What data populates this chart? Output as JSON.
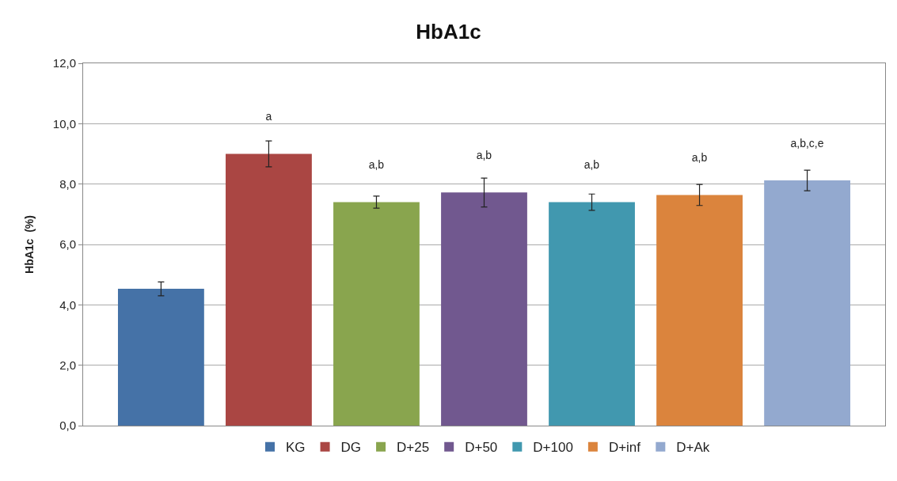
{
  "chart_data": {
    "type": "bar",
    "title": "HbA1c",
    "ylabel": "HbA1c  (%)",
    "categories": [
      null
    ],
    "series": [
      {
        "name": "KG",
        "color": "#4572a7",
        "values": [
          4.53
        ],
        "errors": [
          0.23
        ],
        "value_labels": [
          null
        ]
      },
      {
        "name": "DG",
        "color": "#aa4643",
        "values": [
          9.0
        ],
        "errors": [
          0.43
        ],
        "value_labels": [
          "a"
        ]
      },
      {
        "name": "D+25",
        "color": "#89a54e",
        "values": [
          7.4
        ],
        "errors": [
          0.2
        ],
        "value_labels": [
          "a,b"
        ]
      },
      {
        "name": "D+50",
        "color": "#71588f",
        "values": [
          7.72
        ],
        "errors": [
          0.48
        ],
        "value_labels": [
          "a,b"
        ]
      },
      {
        "name": "D+100",
        "color": "#4198af",
        "values": [
          7.4
        ],
        "errors": [
          0.27
        ],
        "value_labels": [
          "a,b"
        ]
      },
      {
        "name": "D+inf",
        "color": "#db843d",
        "values": [
          7.64
        ],
        "errors": [
          0.35
        ],
        "value_labels": [
          "a,b"
        ]
      },
      {
        "name": "D+Ak",
        "color": "#93a9cf",
        "values": [
          8.12
        ],
        "errors": [
          0.34
        ],
        "value_labels": [
          "a,b,c,e"
        ]
      }
    ],
    "ylim": [
      0,
      12
    ],
    "yticks": [
      {
        "value": 0,
        "label": "0,0"
      },
      {
        "value": 2,
        "label": "2,0"
      },
      {
        "value": 4,
        "label": "4,0"
      },
      {
        "value": 6,
        "label": "6,0"
      },
      {
        "value": 8,
        "label": "8,0"
      },
      {
        "value": 10,
        "label": "10,0"
      },
      {
        "value": 12,
        "label": "12,0"
      }
    ],
    "grid": "y",
    "legend": "bottom",
    "tick_labels": "y"
  }
}
